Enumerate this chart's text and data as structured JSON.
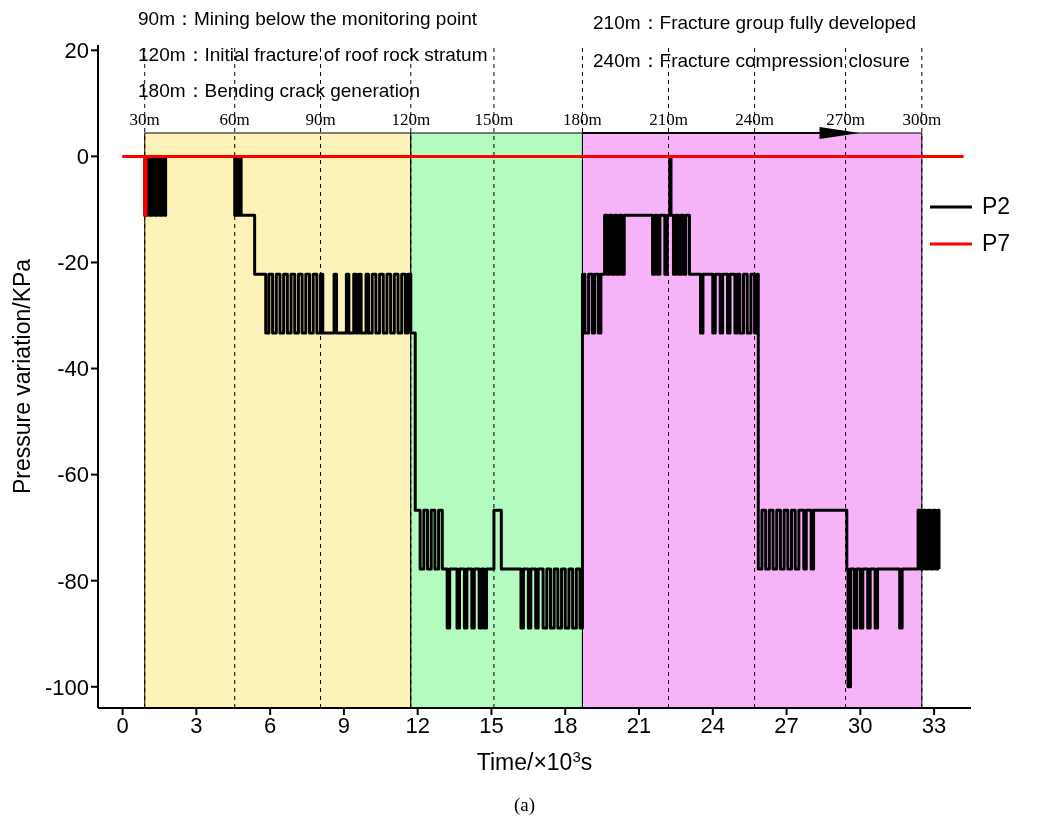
{
  "chart_data": {
    "type": "step",
    "xlabel": "Time/×10$^{3}$s",
    "ylabel": "Pressure variation/KPa",
    "xlim": [
      -1,
      34.5
    ],
    "xticks": [
      0,
      3,
      6,
      9,
      12,
      15,
      18,
      21,
      24,
      27,
      30,
      33
    ],
    "ylim": [
      -104,
      21
    ],
    "yticks": [
      20,
      0,
      -20,
      -40,
      -60,
      -80,
      -100
    ],
    "legend": "right",
    "line_style": "solid",
    "marker": "none",
    "series": [
      {
        "name": "P2",
        "color": "#000000",
        "x": [
          0,
          0.9,
          1.0,
          1.1,
          1.2,
          1.3,
          1.4,
          1.5,
          1.6,
          1.7,
          1.75,
          4.56,
          4.62,
          4.7,
          4.76,
          4.82,
          5.37,
          5.82,
          5.95,
          6.1,
          6.25,
          6.4,
          6.55,
          6.7,
          6.85,
          7.0,
          7.15,
          7.3,
          7.45,
          7.6,
          7.75,
          7.9,
          8.05,
          8.14,
          8.6,
          8.7,
          9.1,
          9.2,
          9.4,
          9.5,
          9.6,
          9.7,
          9.9,
          10.0,
          10.15,
          10.3,
          10.45,
          10.6,
          10.75,
          10.9,
          11.05,
          11.2,
          11.35,
          11.5,
          11.6,
          11.72,
          11.9,
          12.1,
          12.25,
          12.4,
          12.55,
          12.7,
          12.85,
          13.0,
          13.2,
          13.3,
          13.6,
          13.7,
          13.9,
          14.0,
          14.2,
          14.3,
          14.5,
          14.6,
          14.7,
          14.8,
          15.1,
          15.4,
          16.2,
          16.3,
          16.5,
          16.6,
          16.8,
          16.9,
          17.1,
          17.25,
          17.4,
          17.55,
          17.7,
          17.85,
          18.0,
          18.15,
          18.3,
          18.45,
          18.6,
          18.7,
          18.8,
          18.95,
          19.1,
          19.2,
          19.35,
          19.45,
          19.6,
          19.7,
          19.8,
          19.9,
          20.0,
          20.1,
          20.2,
          20.3,
          20.4,
          21.55,
          21.65,
          21.75,
          21.85,
          22.05,
          22.15,
          22.25,
          22.3,
          22.4,
          22.5,
          22.6,
          22.7,
          22.8,
          22.9,
          23.05,
          23.5,
          23.6,
          24.0,
          24.1,
          24.3,
          24.4,
          24.6,
          24.7,
          24.9,
          25.0,
          25.1,
          25.25,
          25.4,
          25.55,
          25.7,
          25.8,
          25.85,
          26.0,
          26.15,
          26.3,
          26.45,
          26.6,
          26.75,
          26.9,
          27.05,
          27.2,
          27.35,
          27.5,
          27.7,
          27.8,
          28.0,
          28.1,
          29.45,
          29.5,
          29.6,
          29.75,
          29.85,
          30.0,
          30.1,
          30.3,
          30.4,
          30.6,
          30.7,
          31.6,
          31.7,
          32.35,
          32.45,
          32.55,
          32.65,
          32.75,
          32.85,
          32.95,
          33.05,
          33.15,
          33.2
        ],
        "values": [
          0,
          -11.1,
          0,
          -11.1,
          0,
          -11.1,
          0,
          -11.1,
          0,
          -11.1,
          0,
          -11.1,
          0,
          -11.1,
          0,
          -11.1,
          -22.2,
          -33.3,
          -22.2,
          -33.3,
          -22.2,
          -33.3,
          -22.2,
          -33.3,
          -22.2,
          -33.3,
          -22.2,
          -33.3,
          -22.2,
          -33.3,
          -22.2,
          -33.3,
          -22.2,
          -33.3,
          -22.2,
          -33.3,
          -22.2,
          -33.3,
          -22.2,
          -33.3,
          -22.2,
          -33.3,
          -22.2,
          -33.3,
          -22.2,
          -33.3,
          -22.2,
          -33.3,
          -22.2,
          -33.3,
          -22.2,
          -33.3,
          -22.2,
          -33.3,
          -22.2,
          -33.3,
          -66.7,
          -77.8,
          -66.7,
          -77.8,
          -66.7,
          -77.8,
          -66.7,
          -77.8,
          -88.9,
          -77.8,
          -88.9,
          -77.8,
          -88.9,
          -77.8,
          -88.9,
          -77.8,
          -88.9,
          -77.8,
          -88.9,
          -77.8,
          -66.7,
          -77.8,
          -88.9,
          -77.8,
          -88.9,
          -77.8,
          -88.9,
          -77.8,
          -88.9,
          -77.8,
          -88.9,
          -77.8,
          -88.9,
          -77.8,
          -88.9,
          -77.8,
          -88.9,
          -77.8,
          -88.9,
          -22.2,
          -33.3,
          -22.2,
          -33.3,
          -22.2,
          -33.3,
          -22.2,
          -11.1,
          -22.2,
          -11.1,
          -22.2,
          -11.1,
          -22.2,
          -11.1,
          -22.2,
          -11.1,
          -22.2,
          -11.1,
          -22.2,
          -11.1,
          -22.2,
          -11.1,
          0,
          -11.1,
          -22.2,
          -11.1,
          -22.2,
          -11.1,
          -22.2,
          -11.1,
          -22.2,
          -33.3,
          -22.2,
          -33.3,
          -22.2,
          -33.3,
          -22.2,
          -33.3,
          -22.2,
          -33.3,
          -22.2,
          -33.3,
          -22.2,
          -33.3,
          -22.2,
          -33.3,
          -22.2,
          -77.8,
          -66.7,
          -77.8,
          -66.7,
          -77.8,
          -66.7,
          -77.8,
          -66.7,
          -77.8,
          -66.7,
          -77.8,
          -66.7,
          -77.8,
          -66.7,
          -77.8,
          -66.7,
          -77.8,
          -100,
          -77.8,
          -88.9,
          -77.8,
          -88.9,
          -77.8,
          -88.9,
          -77.8,
          -88.9,
          -77.8,
          -88.9,
          -77.8,
          -66.7,
          -77.8,
          -66.7,
          -77.8,
          -66.7,
          -77.8,
          -66.7,
          -77.8,
          -66.7,
          -77.8
        ]
      },
      {
        "name": "P7",
        "color": "#ff0000",
        "x": [
          0,
          0.9,
          0.95,
          34.2
        ],
        "values": [
          0,
          -11.1,
          0,
          0
        ]
      }
    ],
    "bands": [
      {
        "axis": "x",
        "from": 0.9,
        "to": 11.72,
        "color": "#fdf3b8"
      },
      {
        "axis": "x",
        "from": 11.72,
        "to": 18.7,
        "color": "#b3fbbf"
      },
      {
        "axis": "x",
        "from": 18.7,
        "to": 32.5,
        "color": "#f7b3f7"
      }
    ],
    "ref_lines": [
      {
        "axis": "x",
        "value": 0.9,
        "label": "30m",
        "line_style": "dashed"
      },
      {
        "axis": "x",
        "value": 4.56,
        "label": "60m",
        "line_style": "dashed"
      },
      {
        "axis": "x",
        "value": 8.05,
        "label": "90m",
        "line_style": "dashed"
      },
      {
        "axis": "x",
        "value": 11.72,
        "label": "120m",
        "line_style": "dashed"
      },
      {
        "axis": "x",
        "value": 15.1,
        "label": "150m",
        "line_style": "dashed"
      },
      {
        "axis": "x",
        "value": 18.7,
        "label": "180m",
        "line_style": "dashed"
      },
      {
        "axis": "x",
        "value": 22.2,
        "label": "210m",
        "line_style": "dashed"
      },
      {
        "axis": "x",
        "value": 25.7,
        "label": "240m",
        "line_style": "dashed"
      },
      {
        "axis": "x",
        "value": 29.4,
        "label": "270m",
        "line_style": "dashed"
      },
      {
        "axis": "x",
        "value": 32.5,
        "label": "300m",
        "line_style": "dashed"
      }
    ],
    "annotations": [
      "90m：Mining below the monitoring point",
      "120m：Initial fracture of roof rock stratum",
      "180m：Bending crack generation",
      "210m：Fracture group fully developed",
      "240m：Fracture compression closure",
      "(a)"
    ]
  }
}
